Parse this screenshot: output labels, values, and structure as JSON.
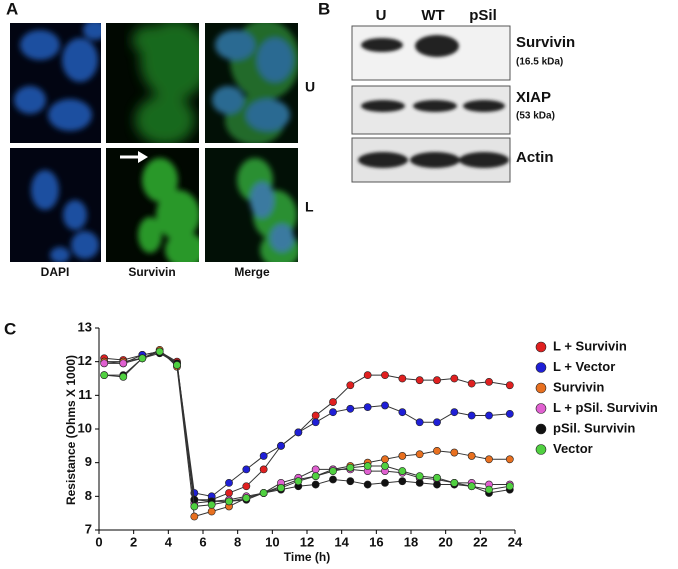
{
  "panel_labels": [
    "A",
    "B",
    "C"
  ],
  "panel_a": {
    "columns": [
      "DAPI",
      "Survivin",
      "Merge"
    ],
    "rows": [
      "U",
      "L"
    ]
  },
  "panel_b": {
    "lanes": [
      "U",
      "WT",
      "pSil"
    ],
    "bands": [
      {
        "name": "Survivin",
        "size": "(16.5 kDa)"
      },
      {
        "name": "XIAP",
        "size": "(53 kDa)"
      },
      {
        "name": "Actin"
      }
    ]
  },
  "chart_data": {
    "type": "line",
    "x_label": "Time (h)",
    "y_label": "Resistance (Ohms X 1000)",
    "x": [
      0.3,
      1.4,
      2.5,
      3.5,
      4.5,
      5.5,
      6.5,
      7.5,
      8.5,
      9.5,
      10.5,
      11.5,
      12.5,
      13.5,
      14.5,
      15.5,
      16.5,
      17.5,
      18.5,
      19.5,
      20.5,
      21.5,
      22.5,
      23.7
    ],
    "xlim": [
      0,
      24
    ],
    "ylim": [
      7,
      13
    ],
    "xticks": [
      0,
      2,
      4,
      6,
      8,
      10,
      12,
      14,
      16,
      18,
      20,
      22,
      24
    ],
    "yticks": [
      7,
      8,
      9,
      10,
      11,
      12,
      13
    ],
    "series": [
      {
        "name": "L + Survivin",
        "color": "#e02020",
        "values": [
          12.1,
          12.05,
          12.2,
          12.3,
          12.0,
          7.9,
          7.9,
          8.1,
          8.3,
          8.8,
          9.5,
          9.9,
          10.4,
          10.8,
          11.3,
          11.6,
          11.6,
          11.5,
          11.45,
          11.45,
          11.5,
          11.35,
          11.4,
          11.3
        ]
      },
      {
        "name": "L + Vector",
        "color": "#1f1fd6",
        "values": [
          12.0,
          11.95,
          12.2,
          12.3,
          11.95,
          8.1,
          8.0,
          8.4,
          8.8,
          9.2,
          9.5,
          9.9,
          10.2,
          10.5,
          10.6,
          10.65,
          10.7,
          10.5,
          10.2,
          10.2,
          10.5,
          10.4,
          10.4,
          10.45
        ]
      },
      {
        "name": "Survivin",
        "color": "#e87020",
        "values": [
          12.0,
          12.0,
          12.1,
          12.35,
          11.85,
          7.4,
          7.55,
          7.7,
          7.95,
          8.1,
          8.3,
          8.5,
          8.6,
          8.8,
          8.9,
          9.0,
          9.1,
          9.2,
          9.25,
          9.35,
          9.3,
          9.2,
          9.1,
          9.1
        ]
      },
      {
        "name": "L + pSil. Survivin",
        "color": "#e060d0",
        "values": [
          11.95,
          11.95,
          12.1,
          12.3,
          11.9,
          7.8,
          7.85,
          7.9,
          8.0,
          8.1,
          8.4,
          8.55,
          8.8,
          8.8,
          8.8,
          8.75,
          8.75,
          8.7,
          8.55,
          8.5,
          8.4,
          8.4,
          8.35,
          8.35
        ]
      },
      {
        "name": "pSil. Survivin",
        "color": "#111111",
        "values": [
          11.6,
          11.6,
          12.1,
          12.25,
          11.95,
          7.9,
          7.85,
          7.85,
          7.9,
          8.1,
          8.2,
          8.3,
          8.35,
          8.5,
          8.45,
          8.35,
          8.4,
          8.45,
          8.4,
          8.35,
          8.35,
          8.3,
          8.1,
          8.2
        ]
      },
      {
        "name": "Vector",
        "color": "#50d040",
        "values": [
          11.6,
          11.55,
          12.1,
          12.3,
          11.9,
          7.7,
          7.75,
          7.85,
          7.95,
          8.1,
          8.25,
          8.45,
          8.6,
          8.75,
          8.85,
          8.9,
          8.9,
          8.75,
          8.6,
          8.55,
          8.4,
          8.3,
          8.2,
          8.3
        ]
      }
    ]
  }
}
